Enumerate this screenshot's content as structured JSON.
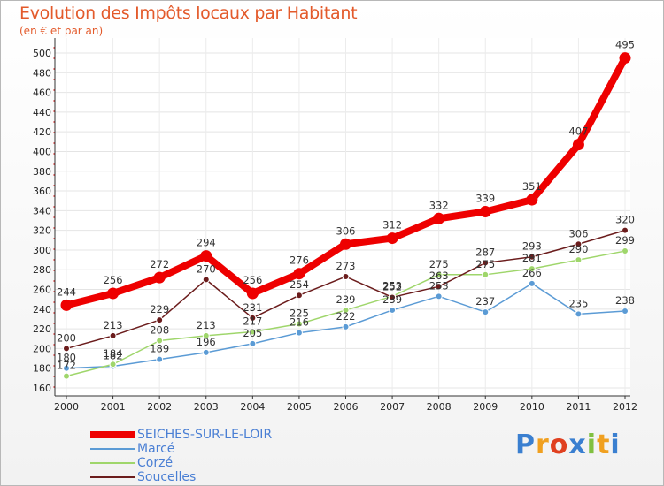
{
  "header": {
    "title": "Evolution des Impôts locaux par Habitant",
    "subtitle": "(en € et par an)"
  },
  "logo": {
    "letters": [
      "P",
      "r",
      "o",
      "x",
      "i",
      "t",
      "i"
    ],
    "colors": [
      "#3a7fd0",
      "#f0a020",
      "#e04020",
      "#3a7fd0",
      "#80c040",
      "#f0a020",
      "#3a7fd0"
    ]
  },
  "chart_data": {
    "type": "line",
    "title": "Evolution des Impôts locaux par Habitant",
    "subtitle": "(en € et par an)",
    "xlabel": "",
    "ylabel": "",
    "x": [
      "2000",
      "2001",
      "2002",
      "2003",
      "2004",
      "2005",
      "2006",
      "2007",
      "2008",
      "2009",
      "2010",
      "2011",
      "2012"
    ],
    "ylim": [
      160,
      500
    ],
    "yticks": [
      160,
      180,
      200,
      220,
      240,
      260,
      280,
      300,
      320,
      340,
      360,
      380,
      400,
      420,
      440,
      460,
      480,
      500
    ],
    "legend_position": "bottom-left",
    "series": [
      {
        "name": "SEICHES-SUR-LE-LOIR",
        "color": "#ee0000",
        "emphasis": true,
        "values": [
          244,
          256,
          272,
          294,
          256,
          276,
          306,
          312,
          332,
          339,
          351,
          407,
          495
        ]
      },
      {
        "name": "Marcé",
        "color": "#5b9bd5",
        "emphasis": false,
        "values": [
          180,
          182,
          189,
          196,
          205,
          216,
          222,
          239,
          253,
          237,
          266,
          235,
          238
        ]
      },
      {
        "name": "Corzé",
        "color": "#9fd66b",
        "emphasis": false,
        "values": [
          172,
          184,
          208,
          213,
          217,
          225,
          239,
          253,
          275,
          275,
          281,
          290,
          299
        ]
      },
      {
        "name": "Soucelles",
        "color": "#6b1c1c",
        "emphasis": false,
        "values": [
          200,
          213,
          229,
          270,
          231,
          254,
          273,
          252,
          263,
          287,
          293,
          306,
          320
        ]
      }
    ]
  }
}
